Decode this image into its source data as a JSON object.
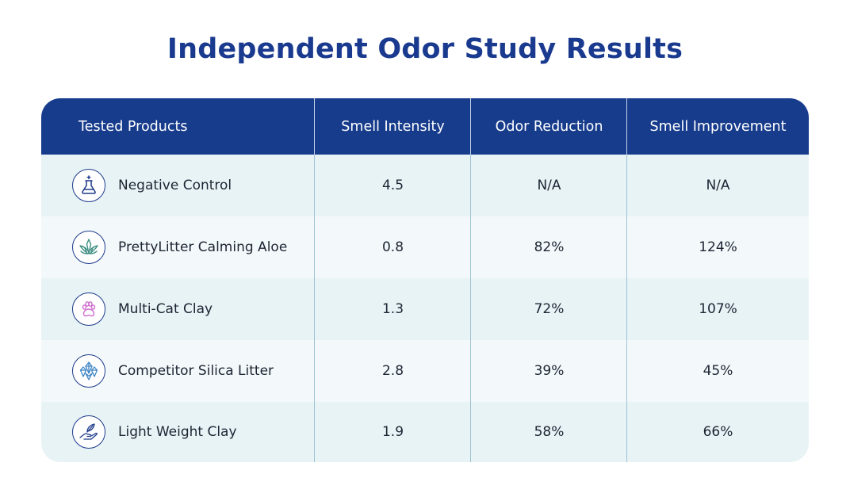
{
  "title": "Independent Odor Study Results",
  "columns": [
    "Tested Products",
    "Smell Intensity",
    "Odor Reduction",
    "Smell Improvement"
  ],
  "rows": [
    {
      "product": "Negative Control",
      "icon": "flask-icon",
      "intensity": "4.5",
      "reduction": "N/A",
      "improvement": "N/A"
    },
    {
      "product": "PrettyLitter Calming Aloe",
      "icon": "aloe-plant-icon",
      "intensity": "0.8",
      "reduction": "82%",
      "improvement": "124%"
    },
    {
      "product": "Multi-Cat Clay",
      "icon": "paw-print-icon",
      "intensity": "1.3",
      "reduction": "72%",
      "improvement": "107%"
    },
    {
      "product": "Competitor Silica Litter",
      "icon": "crystals-icon",
      "intensity": "2.8",
      "reduction": "39%",
      "improvement": "45%"
    },
    {
      "product": "Light Weight Clay",
      "icon": "hand-feather-icon",
      "intensity": "1.9",
      "reduction": "58%",
      "improvement": "66%"
    }
  ],
  "colors": {
    "header_bg": "#173c8c",
    "title": "#1a3a8f",
    "row_dark": "#e8f3f6",
    "row_light": "#f3f9fa",
    "icon_paw": "#d06ad0",
    "icon_teal": "#3f8f82"
  }
}
